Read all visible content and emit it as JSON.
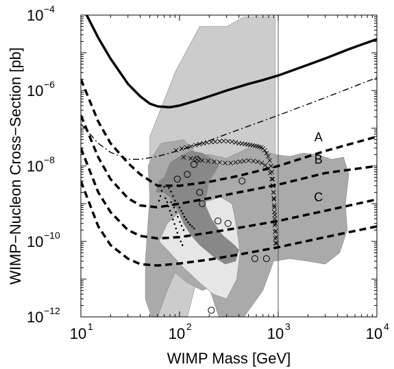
{
  "chart_data": {
    "type": "line",
    "xlabel": "WIMP Mass [GeV]",
    "ylabel": "WIMP−Nucleon Cross−Section [pb]",
    "x_scale": "log",
    "y_scale": "log",
    "xlim": [
      10,
      10000
    ],
    "ylim": [
      1e-12,
      0.0001
    ],
    "x_ticks": [
      {
        "value": 10,
        "base": "10",
        "exp": "1"
      },
      {
        "value": 100,
        "base": "10",
        "exp": "2"
      },
      {
        "value": 1000,
        "base": "10",
        "exp": "3"
      },
      {
        "value": 10000,
        "base": "10",
        "exp": "4"
      }
    ],
    "y_ticks": [
      {
        "value": 1e-12,
        "base": "10",
        "exp": "−12"
      },
      {
        "value": 1e-10,
        "base": "10",
        "exp": "−10"
      },
      {
        "value": 1e-08,
        "base": "10",
        "exp": "−8"
      },
      {
        "value": 1e-06,
        "base": "10",
        "exp": "−6"
      },
      {
        "value": 0.0001,
        "base": "10",
        "exp": "−4"
      }
    ],
    "grid": false,
    "regions": [
      {
        "shade": "#cccccc",
        "points": [
          [
            50,
            3e-12
          ],
          [
            50,
            6e-08
          ],
          [
            60,
            2e-07
          ],
          [
            90,
            3e-06
          ],
          [
            160,
            5e-05
          ],
          [
            300,
            5e-05
          ],
          [
            450,
            9e-05
          ],
          [
            930,
            9e-05
          ],
          [
            940,
            2e-09
          ],
          [
            900,
            4e-11
          ],
          [
            600,
            3e-12
          ],
          [
            250,
            6e-11
          ],
          [
            150,
            1e-11
          ],
          [
            120,
            1e-12
          ],
          [
            60,
            1e-12
          ]
        ]
      },
      {
        "shade": "#aaaaaa",
        "points": [
          [
            45,
            3e-12
          ],
          [
            45,
            3e-11
          ],
          [
            50,
            1.6e-09
          ],
          [
            48,
            1e-08
          ],
          [
            55,
            2e-08
          ],
          [
            65,
            4e-08
          ],
          [
            110,
            5e-08
          ],
          [
            150,
            2e-08
          ],
          [
            200,
            2e-08
          ],
          [
            300,
            1.6e-08
          ],
          [
            500,
            3e-08
          ],
          [
            700,
            2.5e-08
          ],
          [
            930,
            2e-08
          ],
          [
            1300,
            1.8e-08
          ],
          [
            1800,
            2.2e-08
          ],
          [
            2500,
            2e-08
          ],
          [
            3500,
            1.5e-08
          ],
          [
            4600,
            1.7e-08
          ],
          [
            5200,
            6e-09
          ],
          [
            4800,
            1e-09
          ],
          [
            5000,
            2e-10
          ],
          [
            4200,
            5e-11
          ],
          [
            3000,
            2.5e-11
          ],
          [
            2000,
            3e-11
          ],
          [
            1300,
            3.5e-11
          ],
          [
            900,
            3e-11
          ],
          [
            700,
            5e-12
          ],
          [
            450,
            1e-12
          ],
          [
            250,
            1e-12
          ],
          [
            200,
            6e-12
          ],
          [
            170,
            5e-12
          ],
          [
            120,
            8e-12
          ],
          [
            90,
            1.5e-11
          ],
          [
            75,
            5e-12
          ],
          [
            60,
            1e-12
          ],
          [
            52,
            1e-12
          ]
        ]
      },
      {
        "shade": "#e6e6e6",
        "points": [
          [
            62,
            1e-10
          ],
          [
            75,
            3e-10
          ],
          [
            100,
            6e-10
          ],
          [
            160,
            1e-09
          ],
          [
            260,
            1.5e-09
          ],
          [
            340,
            1e-09
          ],
          [
            360,
            5e-10
          ],
          [
            390,
            1.5e-10
          ],
          [
            410,
            5e-11
          ],
          [
            380,
            1e-11
          ],
          [
            300,
            3e-12
          ],
          [
            220,
            4e-12
          ],
          [
            160,
            8e-12
          ],
          [
            110,
            2e-11
          ],
          [
            80,
            5e-11
          ]
        ]
      },
      {
        "shade": "#888888",
        "points": [
          [
            58,
            2e-09
          ],
          [
            62,
            4e-09
          ],
          [
            70,
            5e-09
          ],
          [
            80,
            1.2e-08
          ],
          [
            100,
            1.8e-08
          ],
          [
            130,
            2.5e-08
          ],
          [
            170,
            2.2e-08
          ],
          [
            220,
            1.5e-08
          ],
          [
            250,
            1e-08
          ],
          [
            200,
            4e-09
          ],
          [
            180,
            1e-09
          ],
          [
            210,
            4e-10
          ],
          [
            270,
            1.5e-10
          ],
          [
            360,
            8e-11
          ],
          [
            400,
            6e-11
          ],
          [
            370,
            3e-11
          ],
          [
            290,
            2.5e-11
          ],
          [
            220,
            4e-11
          ],
          [
            160,
            8e-11
          ],
          [
            130,
            1.5e-10
          ],
          [
            110,
            3e-10
          ],
          [
            95,
            7e-10
          ],
          [
            80,
            1.5e-09
          ],
          [
            68,
            2e-09
          ]
        ]
      }
    ],
    "series": [
      {
        "style": "solid",
        "x": [
          10,
          15,
          20,
          25,
          30,
          40,
          50,
          60,
          80,
          100,
          150,
          200,
          300,
          500,
          700,
          1000,
          2000,
          3000,
          5000,
          7000,
          10000
        ],
        "y": [
          0.0002,
          2.5e-05,
          7e-06,
          3e-06,
          1.5e-06,
          7e-07,
          4.5e-07,
          3.8e-07,
          3.6e-07,
          4e-07,
          5.5e-07,
          7e-07,
          1e-06,
          1.5e-06,
          1.9e-06,
          2.5e-06,
          4.8e-06,
          7.1e-06,
          1.2e-05,
          1.65e-05,
          2.3e-05
        ]
      },
      {
        "style": "dash-dot",
        "x": [
          10,
          15,
          20,
          30,
          40,
          60,
          100,
          200,
          300,
          1000,
          3000,
          10000
        ],
        "y": [
          1.3e-07,
          4e-08,
          2.3e-08,
          1.5e-08,
          1.5e-08,
          1.8e-08,
          2.6e-08,
          4.7e-08,
          7e-08,
          2.2e-07,
          6.5e-07,
          2.2e-06
        ]
      },
      {
        "name": "A",
        "style": "dashed",
        "x": [
          10,
          15,
          20,
          30,
          40,
          60,
          100,
          200,
          400,
          1000,
          3000,
          10000
        ],
        "y": [
          2e-06,
          1.5e-07,
          4e-08,
          1.2e-08,
          6e-09,
          3e-09,
          3e-09,
          3.8e-09,
          5.5e-09,
          1e-08,
          2.5e-08,
          6e-08
        ]
      },
      {
        "name": "B",
        "style": "dashed",
        "x": [
          10,
          15,
          20,
          30,
          40,
          60,
          100,
          200,
          400,
          1000,
          3000,
          10000
        ],
        "y": [
          2.2e-07,
          1.7e-08,
          4.5e-09,
          1.4e-09,
          9e-10,
          8e-10,
          1e-09,
          1.4e-09,
          2e-09,
          3.2e-09,
          6.5e-09,
          1e-08
        ]
      },
      {
        "name": "C",
        "style": "dashed",
        "x": [
          10,
          15,
          20,
          30,
          40,
          60,
          100,
          200,
          400,
          1000,
          3000,
          10000
        ],
        "y": [
          3e-08,
          2e-09,
          6e-10,
          2e-10,
          1.4e-10,
          1.2e-10,
          1.3e-10,
          1.7e-10,
          2.3e-10,
          3.5e-10,
          6.5e-10,
          1.3e-09
        ]
      },
      {
        "style": "dashed",
        "x": [
          10,
          15,
          20,
          30,
          40,
          60,
          100,
          200,
          400,
          1000,
          3000,
          10000
        ],
        "y": [
          4e-09,
          2.5e-10,
          8e-11,
          3.5e-11,
          2.5e-11,
          2.3e-11,
          2.6e-11,
          3.3e-11,
          4.5e-11,
          7e-11,
          1.3e-10,
          2.5e-10
        ]
      }
    ],
    "cross_markers": [
      [
        92,
        2.6e-08
      ],
      [
        105,
        2.9e-08
      ],
      [
        118,
        3.1e-08
      ],
      [
        130,
        3.3e-08
      ],
      [
        145,
        3.6e-08
      ],
      [
        160,
        3.8e-08
      ],
      [
        175,
        4e-08
      ],
      [
        190,
        4.2e-08
      ],
      [
        210,
        4.3e-08
      ],
      [
        230,
        4.4e-08
      ],
      [
        255,
        4.5e-08
      ],
      [
        280,
        4.6e-08
      ],
      [
        310,
        4.5e-08
      ],
      [
        340,
        4.4e-08
      ],
      [
        370,
        4.2e-08
      ],
      [
        400,
        4e-08
      ],
      [
        430,
        3.9e-08
      ],
      [
        460,
        3.8e-08
      ],
      [
        490,
        3.7e-08
      ],
      [
        520,
        3.6e-08
      ],
      [
        550,
        3.5e-08
      ],
      [
        580,
        3.4e-08
      ],
      [
        610,
        3.3e-08
      ],
      [
        640,
        3.2e-08
      ],
      [
        670,
        3.1e-08
      ],
      [
        700,
        2.9e-08
      ],
      [
        730,
        2.6e-08
      ],
      [
        760,
        2.2e-08
      ],
      [
        790,
        1.8e-08
      ],
      [
        820,
        1.4e-08
      ],
      [
        845,
        1e-08
      ],
      [
        865,
        7e-09
      ],
      [
        880,
        4.5e-09
      ],
      [
        890,
        3e-09
      ],
      [
        900,
        2e-09
      ],
      [
        905,
        1.4e-09
      ],
      [
        910,
        9e-10
      ],
      [
        915,
        6e-10
      ],
      [
        920,
        4e-10
      ],
      [
        925,
        2.7e-10
      ],
      [
        930,
        1.8e-10
      ],
      [
        935,
        1.2e-10
      ],
      [
        940,
        9e-11
      ],
      [
        110,
        1.7e-08
      ],
      [
        130,
        1.6e-08
      ],
      [
        150,
        1.5e-08
      ],
      [
        170,
        1.4e-08
      ],
      [
        195,
        1.35e-08
      ],
      [
        225,
        1.3e-08
      ],
      [
        255,
        1.25e-08
      ],
      [
        290,
        1.2e-08
      ],
      [
        330,
        1.2e-08
      ],
      [
        370,
        1.25e-08
      ],
      [
        410,
        1.3e-08
      ],
      [
        450,
        1.35e-08
      ],
      [
        500,
        1.4e-08
      ],
      [
        560,
        1.35e-08
      ],
      [
        620,
        1.3e-08
      ],
      [
        680,
        1.2e-08
      ],
      [
        740,
        1.05e-08
      ],
      [
        790,
        8.5e-09
      ],
      [
        830,
        6.5e-09
      ],
      [
        860,
        4.5e-09
      ],
      [
        880,
        3e-09
      ],
      [
        895,
        2e-09
      ],
      [
        905,
        1.3e-09
      ],
      [
        915,
        8e-10
      ],
      [
        925,
        5e-10
      ],
      [
        935,
        3e-10
      ],
      [
        945,
        1.9e-10
      ],
      [
        955,
        1.3e-10
      ],
      [
        965,
        9e-11
      ]
    ],
    "dot_markers": [
      [
        62,
        1.2e-09
      ],
      [
        64,
        1.6e-09
      ],
      [
        66,
        2.2e-09
      ],
      [
        70,
        2.8e-09
      ],
      [
        74,
        3e-09
      ],
      [
        78,
        2.6e-09
      ],
      [
        82,
        2.1e-09
      ],
      [
        86,
        1.6e-09
      ],
      [
        90,
        1.2e-09
      ],
      [
        95,
        1e-09
      ],
      [
        100,
        8e-10
      ],
      [
        104,
        6.5e-10
      ],
      [
        108,
        5.5e-10
      ],
      [
        112,
        4.5e-10
      ],
      [
        117,
        3.8e-10
      ],
      [
        122,
        3.2e-10
      ],
      [
        128,
        2.8e-10
      ],
      [
        134,
        2.5e-10
      ],
      [
        140,
        2.2e-10
      ],
      [
        82,
        1.1e-09
      ],
      [
        88,
        8e-10
      ],
      [
        92,
        6e-10
      ],
      [
        96,
        4.5e-10
      ],
      [
        101,
        3.3e-10
      ],
      [
        105,
        2.6e-10
      ],
      [
        110,
        2e-10
      ],
      [
        72,
        1.4e-09
      ],
      [
        75,
        1.1e-09
      ],
      [
        77,
        8.5e-10
      ],
      [
        80,
        6.5e-10
      ],
      [
        83,
        5e-10
      ],
      [
        86,
        3.8e-10
      ],
      [
        89,
        2.9e-10
      ],
      [
        92,
        2.2e-10
      ],
      [
        95,
        1.7e-10
      ],
      [
        99,
        1.3e-10
      ],
      [
        103,
        1e-10
      ],
      [
        107,
        8e-11
      ]
    ],
    "circle_markers": [
      [
        95,
        4.5e-09
      ],
      [
        120,
        6e-09
      ],
      [
        140,
        1.1e-08
      ],
      [
        150,
        1.5e-08
      ],
      [
        160,
        2e-09
      ],
      [
        170,
        1e-09
      ],
      [
        245,
        3.5e-10
      ],
      [
        310,
        3e-10
      ],
      [
        430,
        4e-09
      ],
      [
        580,
        3.5e-11
      ],
      [
        760,
        3.5e-11
      ],
      [
        210,
        1.5e-12
      ]
    ]
  }
}
